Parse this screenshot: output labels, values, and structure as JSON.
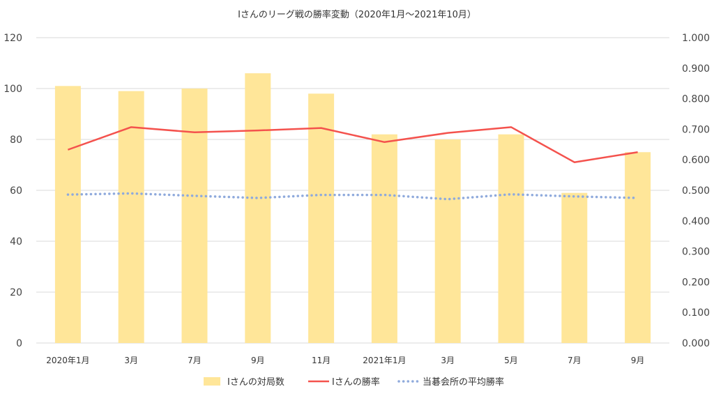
{
  "chart_data": {
    "type": "bar",
    "title": "Iさんのリーグ戦の勝率変動（2020年1月～2021年10月）",
    "categories": [
      "2020年1月",
      "3月",
      "7月",
      "9月",
      "11月",
      "2021年1月",
      "3月",
      "5月",
      "7月",
      "9月"
    ],
    "series": [
      {
        "name": "Iさんの対局数",
        "kind": "bar",
        "axis": "left",
        "color": "#FFE699",
        "values": [
          101,
          99,
          100,
          106,
          98,
          82,
          80,
          82,
          59,
          75
        ]
      },
      {
        "name": "Iさんの勝率",
        "kind": "line",
        "axis": "right",
        "color": "#F4524D",
        "values": [
          0.633,
          0.707,
          0.69,
          0.696,
          0.704,
          0.658,
          0.688,
          0.707,
          0.592,
          0.625
        ]
      },
      {
        "name": "当碁会所の平均勝率",
        "kind": "dotted-line",
        "axis": "right",
        "color": "#8FAADC",
        "values": [
          0.486,
          0.49,
          0.482,
          0.475,
          0.485,
          0.485,
          0.471,
          0.487,
          0.48,
          0.475
        ]
      }
    ],
    "y_left": {
      "ylim": [
        0,
        120
      ],
      "ticks": [
        "0",
        "20",
        "40",
        "60",
        "80",
        "100",
        "120"
      ]
    },
    "y_right": {
      "ylim": [
        0,
        1.0
      ],
      "ticks": [
        "0.000",
        "0.100",
        "0.200",
        "0.300",
        "0.400",
        "0.500",
        "0.600",
        "0.700",
        "0.800",
        "0.900",
        "1.000"
      ]
    },
    "grid": true,
    "legend_position": "bottom"
  }
}
